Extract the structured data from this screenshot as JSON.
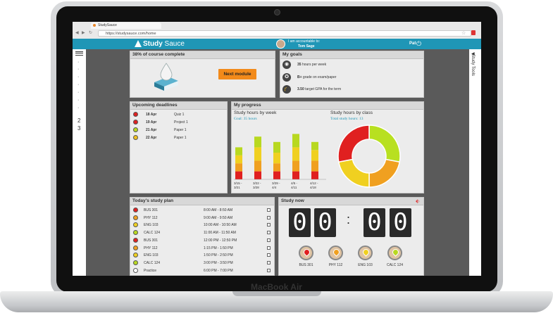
{
  "browser": {
    "tab_title": "StudySauce",
    "url": "https://studysauce.com/home"
  },
  "header": {
    "logo_bold": "Study",
    "logo_rest": " Sauce",
    "accountable_label": "I am accountable to:",
    "accountable_name": "Tom Sage",
    "user_name": "Pat",
    "power_icon": "power-icon"
  },
  "sidebar": {
    "numbers": [
      "2",
      "3"
    ],
    "right_label": "Study Tools"
  },
  "course": {
    "title": "38% of course complete",
    "progress": 0.38,
    "button": "Next module"
  },
  "goals": {
    "title": "My goals",
    "items": [
      {
        "icon": "camera-icon",
        "bold": "35",
        "text": " hours per week"
      },
      {
        "icon": "medal-icon",
        "bold": "B+",
        "text": " grade on exam/paper"
      },
      {
        "icon": "graduation-cap-icon",
        "bold": "3.50",
        "text": " target GPA for the term"
      }
    ]
  },
  "deadlines": {
    "title": "Upcoming deadlines",
    "items": [
      {
        "date": "18 Apr",
        "name": "Quiz 1",
        "color": "#e02020"
      },
      {
        "date": "19 Apr",
        "name": "Project 1",
        "color": "#e02020"
      },
      {
        "date": "21 Apr",
        "name": "Paper 1",
        "color": "#b8d820"
      },
      {
        "date": "22 Apr",
        "name": "Paper 1",
        "color": "#f0c020"
      }
    ]
  },
  "progress": {
    "title": "My progress",
    "week_title": "Study hours by week",
    "goal_label": "Goal: 35 hours",
    "class_title": "Study hours by class",
    "total_label": "Total study hours: 13"
  },
  "chart_data": [
    {
      "type": "bar",
      "title": "Study hours by week",
      "categories": [
        "3/15 - 3/21",
        "3/22 - 3/28",
        "3/29 - 4/4",
        "4/5 - 4/11",
        "4/12 - 4/18"
      ],
      "series": [
        {
          "color": "#e02020",
          "values": [
            3,
            3,
            3,
            3,
            3
          ]
        },
        {
          "color": "#f0a020",
          "values": [
            3,
            4,
            3,
            4,
            4
          ]
        },
        {
          "color": "#f0d020",
          "values": [
            3,
            5,
            4,
            5,
            4
          ]
        },
        {
          "color": "#b8d820",
          "values": [
            3,
            4,
            4,
            5,
            3
          ]
        }
      ]
    },
    {
      "type": "pie",
      "title": "Study hours by class",
      "slices": [
        {
          "color": "#b8e020",
          "value": 28
        },
        {
          "color": "#f0a020",
          "value": 22
        },
        {
          "color": "#f0d020",
          "value": 22
        },
        {
          "color": "#e02020",
          "value": 28
        }
      ]
    }
  ],
  "plan": {
    "title": "Today's study plan",
    "items": [
      {
        "class": "BUS 301",
        "time": "8:00 AM - 8:50 AM",
        "color": "#e02020"
      },
      {
        "class": "PHY 112",
        "time": "9:00 AM - 9:50 AM",
        "color": "#f0a020"
      },
      {
        "class": "ENG 103",
        "time": "10:00 AM - 10:50 AM",
        "color": "#f0d020"
      },
      {
        "class": "CALC 124",
        "time": "11:00 AM - 11:50 AM",
        "color": "#b8d820"
      },
      {
        "class": "BUS 301",
        "time": "12:00 PM - 12:50 PM",
        "color": "#e02020"
      },
      {
        "class": "PHY 112",
        "time": "1:15 PM - 1:50 PM",
        "color": "#f0a020"
      },
      {
        "class": "ENG 103",
        "time": "1:50 PM - 2:50 PM",
        "color": "#f0d020"
      },
      {
        "class": "CALC 124",
        "time": "3:00 PM - 3:50 PM",
        "color": "#b8d820"
      },
      {
        "class": "Practice",
        "time": "6:00 PM - 7:00 PM",
        "color": "#ffffff"
      }
    ]
  },
  "studynow": {
    "title": "Study now",
    "d1": "0",
    "d2": "0",
    "colon": ":",
    "d3": "0",
    "d4": "0",
    "buttons": [
      {
        "label": "BUS 301",
        "color": "#e02020"
      },
      {
        "label": "PHY 112",
        "color": "#f0a020"
      },
      {
        "label": "ENG 103",
        "color": "#f0d020"
      },
      {
        "label": "CALC 124",
        "color": "#b8d820"
      }
    ]
  },
  "laptop": {
    "brand": "MacBook Air"
  }
}
